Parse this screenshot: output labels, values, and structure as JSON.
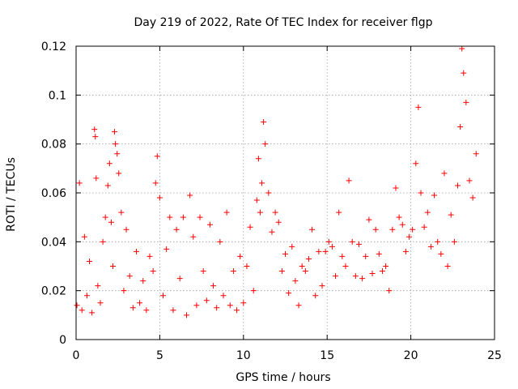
{
  "chart_data": {
    "type": "scatter",
    "title": "Day 219 of 2022, Rate Of TEC Index for receiver flgp",
    "xlabel": "GPS time / hours",
    "ylabel": "ROTI / TECUs",
    "xlim": [
      0,
      25
    ],
    "ylim": [
      0,
      0.12
    ],
    "xticks": [
      0,
      5,
      10,
      15,
      20,
      25
    ],
    "xtick_labels": [
      "0",
      "5",
      "10",
      "15",
      "20",
      "25"
    ],
    "yticks": [
      0,
      0.02,
      0.04,
      0.06,
      0.08,
      0.1,
      0.12
    ],
    "ytick_labels": [
      "0",
      "0.02",
      "0.04",
      "0.06",
      "0.08",
      "0.1",
      "0.12"
    ],
    "grid": true,
    "marker": "+",
    "marker_color": "#ff0000",
    "series": [
      {
        "name": "ROTI",
        "x": [
          0.05,
          0.2,
          0.35,
          0.5,
          0.65,
          0.8,
          0.95,
          1.1,
          1.15,
          1.2,
          1.3,
          1.45,
          1.6,
          1.75,
          1.9,
          2.0,
          2.1,
          2.2,
          2.3,
          2.35,
          2.45,
          2.55,
          2.7,
          2.85,
          3.0,
          3.2,
          3.4,
          3.6,
          3.8,
          4.0,
          4.2,
          4.4,
          4.6,
          4.75,
          4.85,
          5.0,
          5.2,
          5.4,
          5.6,
          5.8,
          6.0,
          6.2,
          6.4,
          6.6,
          6.8,
          7.0,
          7.2,
          7.4,
          7.6,
          7.8,
          8.0,
          8.2,
          8.4,
          8.6,
          8.8,
          9.0,
          9.2,
          9.4,
          9.6,
          9.8,
          10.0,
          10.2,
          10.4,
          10.6,
          10.8,
          10.9,
          11.0,
          11.1,
          11.2,
          11.3,
          11.5,
          11.7,
          11.9,
          12.1,
          12.3,
          12.5,
          12.7,
          12.9,
          13.1,
          13.3,
          13.5,
          13.7,
          13.9,
          14.1,
          14.3,
          14.5,
          14.7,
          14.9,
          15.1,
          15.3,
          15.5,
          15.7,
          15.9,
          16.1,
          16.3,
          16.5,
          16.7,
          16.9,
          17.1,
          17.3,
          17.5,
          17.7,
          17.9,
          18.1,
          18.3,
          18.5,
          18.7,
          18.9,
          19.1,
          19.3,
          19.5,
          19.7,
          19.9,
          20.1,
          20.3,
          20.45,
          20.6,
          20.8,
          21.0,
          21.2,
          21.4,
          21.6,
          21.8,
          22.0,
          22.2,
          22.4,
          22.6,
          22.8,
          22.95,
          23.05,
          23.15,
          23.3,
          23.5,
          23.7,
          23.9
        ],
        "y": [
          0.014,
          0.064,
          0.012,
          0.042,
          0.018,
          0.032,
          0.011,
          0.086,
          0.083,
          0.066,
          0.022,
          0.015,
          0.04,
          0.05,
          0.063,
          0.072,
          0.048,
          0.03,
          0.085,
          0.08,
          0.076,
          0.068,
          0.052,
          0.02,
          0.045,
          0.026,
          0.013,
          0.036,
          0.015,
          0.024,
          0.012,
          0.034,
          0.028,
          0.064,
          0.075,
          0.058,
          0.018,
          0.037,
          0.05,
          0.012,
          0.045,
          0.025,
          0.05,
          0.01,
          0.059,
          0.042,
          0.014,
          0.05,
          0.028,
          0.016,
          0.047,
          0.022,
          0.013,
          0.04,
          0.018,
          0.052,
          0.014,
          0.028,
          0.012,
          0.034,
          0.015,
          0.03,
          0.046,
          0.02,
          0.057,
          0.074,
          0.052,
          0.064,
          0.089,
          0.08,
          0.06,
          0.044,
          0.052,
          0.048,
          0.028,
          0.035,
          0.019,
          0.038,
          0.024,
          0.014,
          0.03,
          0.028,
          0.033,
          0.045,
          0.018,
          0.036,
          0.022,
          0.036,
          0.04,
          0.038,
          0.026,
          0.052,
          0.034,
          0.03,
          0.065,
          0.04,
          0.026,
          0.039,
          0.025,
          0.034,
          0.049,
          0.027,
          0.045,
          0.035,
          0.028,
          0.03,
          0.02,
          0.045,
          0.062,
          0.05,
          0.047,
          0.036,
          0.042,
          0.045,
          0.072,
          0.095,
          0.06,
          0.046,
          0.052,
          0.038,
          0.059,
          0.04,
          0.035,
          0.068,
          0.03,
          0.051,
          0.04,
          0.063,
          0.087,
          0.119,
          0.109,
          0.097,
          0.065,
          0.058,
          0.076
        ]
      }
    ]
  }
}
